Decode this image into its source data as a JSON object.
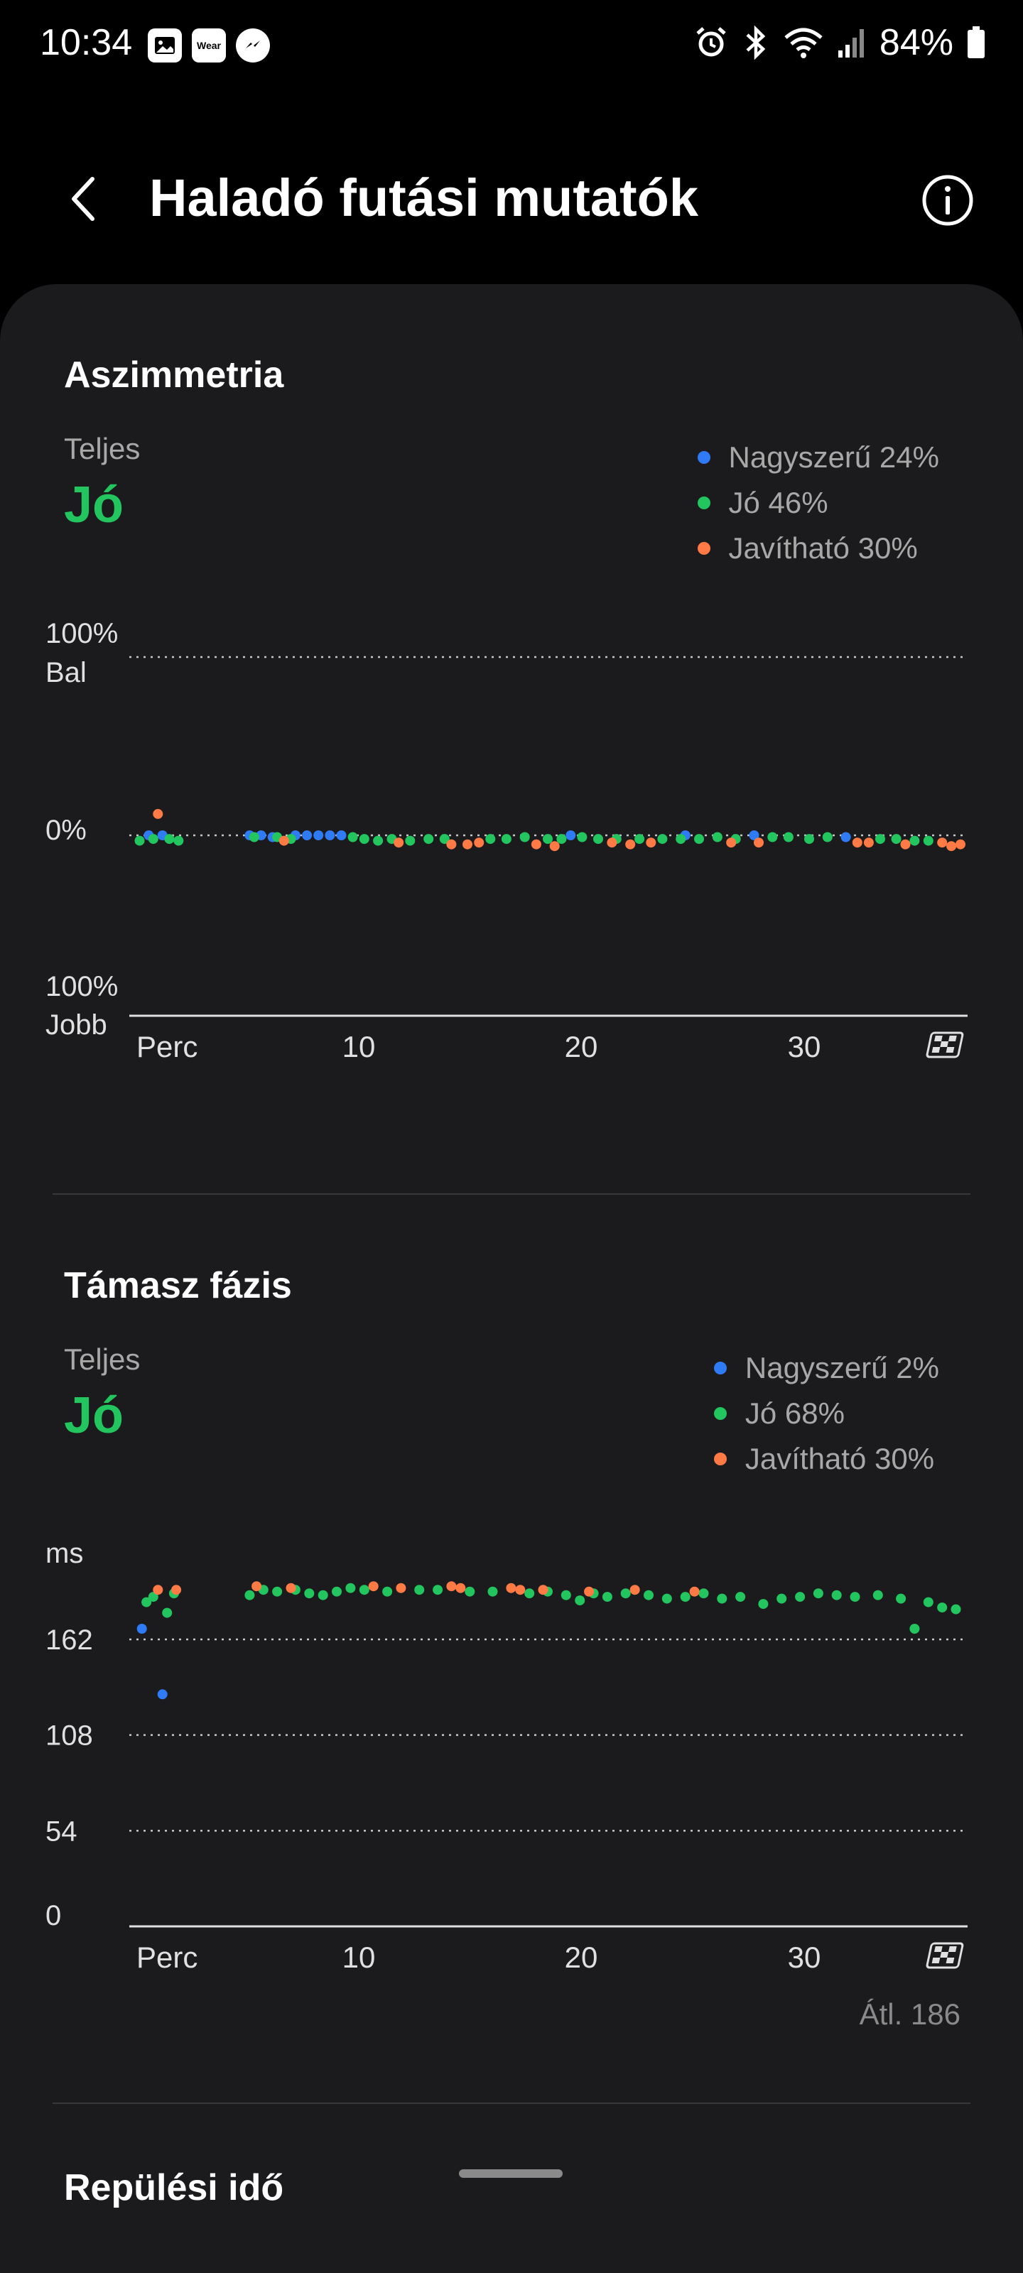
{
  "status_bar": {
    "time": "10:34",
    "left_icons": [
      "gallery-icon",
      "wear-icon",
      "messenger-icon"
    ],
    "wear_label": "Wear",
    "battery": "84%"
  },
  "header": {
    "title": "Haladó futási mutatók"
  },
  "colors": {
    "excellent": "#2f7bf6",
    "good": "#22c55e",
    "improve": "#ff7a45",
    "background": "#1b1b1d"
  },
  "asymmetry": {
    "title": "Aszimmetria",
    "overall_label": "Teljes",
    "overall_value": "Jó",
    "legend": [
      {
        "label": "Nagyszerű 24%",
        "color": "#2f7bf6"
      },
      {
        "label": "Jó 46%",
        "color": "#22c55e"
      },
      {
        "label": "Javítható 30%",
        "color": "#ff7a45"
      }
    ]
  },
  "ground_contact": {
    "title": "Támasz fázis",
    "overall_label": "Teljes",
    "overall_value": "Jó",
    "legend": [
      {
        "label": "Nagyszerű 2%",
        "color": "#2f7bf6"
      },
      {
        "label": "Jó 68%",
        "color": "#22c55e"
      },
      {
        "label": "Javítható 30%",
        "color": "#ff7a45"
      }
    ],
    "avg": "Átl. 186"
  },
  "next_section": {
    "title": "Repülési idő"
  },
  "chart_data": [
    {
      "type": "scatter",
      "title": "Aszimmetria",
      "y_axis_labels": [
        "100%",
        "Bal",
        "0%",
        "100%",
        "Jobb"
      ],
      "x_tick_labels": [
        "Perc",
        "10",
        "20",
        "30"
      ],
      "x_end_icon": "finish-flag-icon",
      "xlim": [
        0,
        36
      ],
      "ylim": [
        -100,
        100
      ],
      "grid": "dotted",
      "series": [
        {
          "name": "Nagyszerű",
          "color": "#2f7bf6",
          "points": [
            [
              0.6,
              0
            ],
            [
              1.2,
              0
            ],
            [
              5.0,
              0
            ],
            [
              5.5,
              0
            ],
            [
              6.0,
              -1
            ],
            [
              7.0,
              0
            ],
            [
              7.5,
              0
            ],
            [
              8.0,
              0
            ],
            [
              8.5,
              0
            ],
            [
              9.0,
              0
            ],
            [
              19.0,
              0
            ],
            [
              24.0,
              0
            ],
            [
              27.0,
              0
            ],
            [
              31.0,
              -1
            ]
          ]
        },
        {
          "name": "Jó",
          "color": "#22c55e",
          "points": [
            [
              0.2,
              -3
            ],
            [
              0.8,
              -2
            ],
            [
              1.5,
              -2
            ],
            [
              1.9,
              -3
            ],
            [
              5.2,
              -1
            ],
            [
              6.2,
              -1
            ],
            [
              6.8,
              -2
            ],
            [
              9.5,
              -1
            ],
            [
              10.0,
              -2
            ],
            [
              10.6,
              -3
            ],
            [
              11.2,
              -2
            ],
            [
              12.0,
              -3
            ],
            [
              12.8,
              -2
            ],
            [
              13.5,
              -2
            ],
            [
              15.5,
              -2
            ],
            [
              16.2,
              -2
            ],
            [
              17.0,
              -1
            ],
            [
              18.0,
              -2
            ],
            [
              18.6,
              -2
            ],
            [
              19.5,
              -1
            ],
            [
              20.2,
              -2
            ],
            [
              21.0,
              -2
            ],
            [
              22.0,
              -2
            ],
            [
              23.0,
              -2
            ],
            [
              23.8,
              -2
            ],
            [
              24.6,
              -2
            ],
            [
              25.4,
              -1
            ],
            [
              26.2,
              -2
            ],
            [
              27.8,
              -1
            ],
            [
              28.5,
              -1
            ],
            [
              29.4,
              -2
            ],
            [
              30.2,
              -1
            ],
            [
              32.5,
              -2
            ],
            [
              33.2,
              -2
            ],
            [
              34.0,
              -3
            ],
            [
              34.6,
              -3
            ]
          ]
        },
        {
          "name": "Javítható",
          "color": "#ff7a45",
          "points": [
            [
              1.0,
              12
            ],
            [
              6.5,
              -3
            ],
            [
              11.5,
              -4
            ],
            [
              13.8,
              -5
            ],
            [
              14.5,
              -5
            ],
            [
              15.0,
              -4
            ],
            [
              17.5,
              -5
            ],
            [
              18.3,
              -6
            ],
            [
              20.8,
              -4
            ],
            [
              21.6,
              -5
            ],
            [
              22.5,
              -4
            ],
            [
              26.0,
              -4
            ],
            [
              27.2,
              -4
            ],
            [
              31.5,
              -4
            ],
            [
              32.0,
              -4
            ],
            [
              33.6,
              -5
            ],
            [
              35.2,
              -4
            ],
            [
              35.6,
              -6
            ],
            [
              36.0,
              -5
            ]
          ]
        }
      ]
    },
    {
      "type": "scatter",
      "title": "Támasz fázis",
      "ylabel": "ms",
      "y_tick_labels": [
        "162",
        "108",
        "54",
        "0"
      ],
      "yticks": [
        162,
        108,
        54,
        0
      ],
      "x_tick_labels": [
        "Perc",
        "10",
        "20",
        "30"
      ],
      "x_end_icon": "finish-flag-icon",
      "xlim": [
        0,
        36
      ],
      "ylim": [
        0,
        216
      ],
      "grid": "dotted",
      "average": 186,
      "series": [
        {
          "name": "Nagyszerű",
          "color": "#2f7bf6",
          "points": [
            [
              0.3,
              168
            ],
            [
              1.2,
              131
            ]
          ]
        },
        {
          "name": "Jó",
          "color": "#22c55e",
          "points": [
            [
              0.5,
              183
            ],
            [
              0.8,
              186
            ],
            [
              1.4,
              177
            ],
            [
              1.7,
              188
            ],
            [
              5.0,
              187
            ],
            [
              5.6,
              190
            ],
            [
              6.2,
              189
            ],
            [
              7.0,
              190
            ],
            [
              7.6,
              188
            ],
            [
              8.2,
              187
            ],
            [
              8.8,
              189
            ],
            [
              9.4,
              191
            ],
            [
              10.0,
              190
            ],
            [
              11.0,
              189
            ],
            [
              12.4,
              190
            ],
            [
              13.2,
              190
            ],
            [
              14.6,
              189
            ],
            [
              15.6,
              189
            ],
            [
              17.2,
              188
            ],
            [
              18.0,
              189
            ],
            [
              18.8,
              187
            ],
            [
              19.4,
              184
            ],
            [
              20.0,
              188
            ],
            [
              20.6,
              186
            ],
            [
              21.4,
              188
            ],
            [
              22.4,
              187
            ],
            [
              23.2,
              185
            ],
            [
              24.0,
              186
            ],
            [
              24.8,
              188
            ],
            [
              25.6,
              185
            ],
            [
              26.4,
              186
            ],
            [
              27.4,
              182
            ],
            [
              28.2,
              185
            ],
            [
              29.0,
              186
            ],
            [
              29.8,
              188
            ],
            [
              30.6,
              187
            ],
            [
              31.4,
              186
            ],
            [
              32.4,
              187
            ],
            [
              33.4,
              185
            ],
            [
              34.0,
              168
            ],
            [
              34.6,
              183
            ],
            [
              35.2,
              180
            ],
            [
              35.8,
              179
            ]
          ]
        },
        {
          "name": "Javítható",
          "color": "#ff7a45",
          "points": [
            [
              1.0,
              190
            ],
            [
              1.8,
              190
            ],
            [
              5.3,
              192
            ],
            [
              6.8,
              191
            ],
            [
              10.4,
              192
            ],
            [
              11.6,
              191
            ],
            [
              13.8,
              192
            ],
            [
              14.2,
              191
            ],
            [
              16.4,
              191
            ],
            [
              16.8,
              190
            ],
            [
              17.8,
              190
            ],
            [
              24.4,
              189
            ],
            [
              19.8,
              189
            ],
            [
              21.8,
              190
            ]
          ]
        }
      ]
    }
  ]
}
